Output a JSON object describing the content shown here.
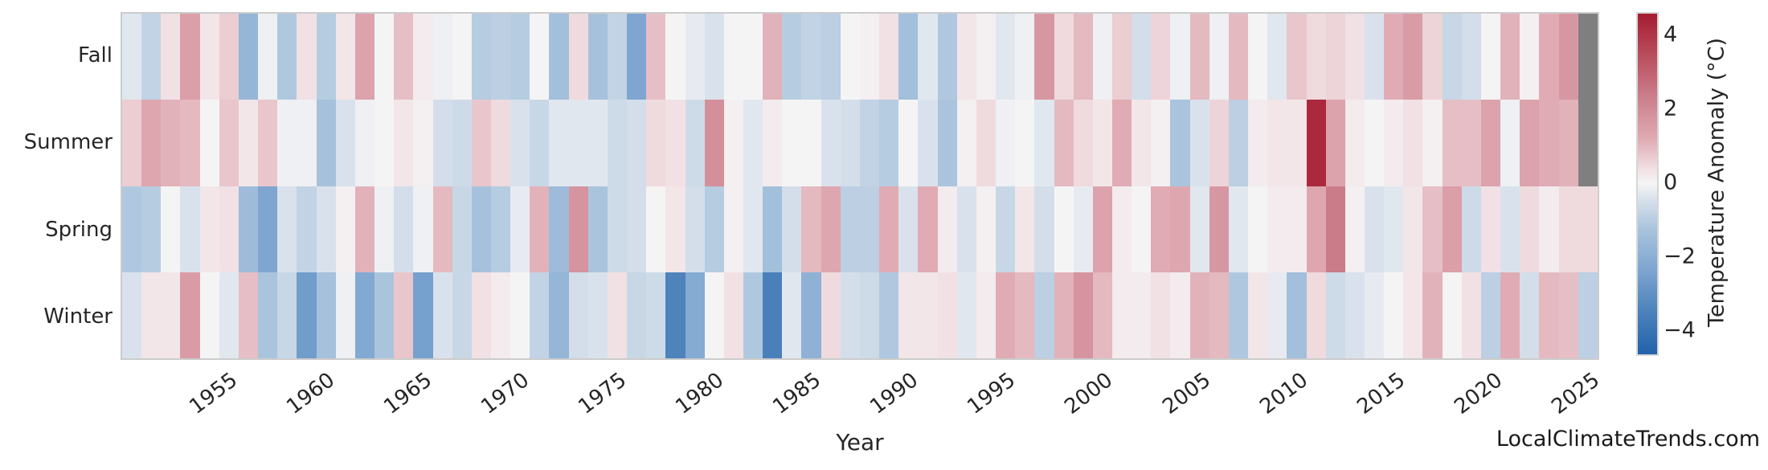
{
  "watermark": "LocalClimateTrends.com",
  "chart_data": {
    "type": "heatmap",
    "title": "",
    "xlabel": "Year",
    "ylabel": "",
    "grid": false,
    "legend_position": "right-colorbar",
    "rows": [
      "Fall",
      "Summer",
      "Spring",
      "Winter"
    ],
    "years": [
      1950,
      1951,
      1952,
      1953,
      1954,
      1955,
      1956,
      1957,
      1958,
      1959,
      1960,
      1961,
      1962,
      1963,
      1964,
      1965,
      1966,
      1967,
      1968,
      1969,
      1970,
      1971,
      1972,
      1973,
      1974,
      1975,
      1976,
      1977,
      1978,
      1979,
      1980,
      1981,
      1982,
      1983,
      1984,
      1985,
      1986,
      1987,
      1988,
      1989,
      1990,
      1991,
      1992,
      1993,
      1994,
      1995,
      1996,
      1997,
      1998,
      1999,
      2000,
      2001,
      2002,
      2003,
      2004,
      2005,
      2006,
      2007,
      2008,
      2009,
      2010,
      2011,
      2012,
      2013,
      2014,
      2015,
      2016,
      2017,
      2018,
      2019,
      2020,
      2021,
      2022,
      2023,
      2024,
      2025
    ],
    "series": [
      {
        "name": "Fall",
        "values": [
          -0.3,
          -0.8,
          0.4,
          1.5,
          0.3,
          0.7,
          -1.7,
          -0.1,
          -1.1,
          0.4,
          -1.0,
          0.3,
          1.4,
          0.0,
          0.9,
          0.2,
          -0.1,
          0.0,
          -1.0,
          -0.9,
          -1.0,
          0.0,
          -1.4,
          0.5,
          -1.3,
          -0.8,
          -2.3,
          0.9,
          0.0,
          -0.2,
          -0.4,
          0.0,
          0.0,
          1.1,
          -1.0,
          -0.8,
          -0.9,
          0.0,
          0.1,
          0.4,
          -1.4,
          -0.3,
          -1.1,
          0.3,
          0.1,
          -0.3,
          -0.1,
          1.7,
          0.5,
          1.0,
          -0.1,
          0.7,
          -0.5,
          0.6,
          -0.1,
          1.0,
          -0.1,
          1.0,
          0.0,
          -0.3,
          0.8,
          0.5,
          0.6,
          0.4,
          -0.4,
          1.2,
          1.6,
          0.6,
          -0.7,
          -0.5,
          0.0,
          1.1,
          0.1,
          1.2,
          1.7,
          null
        ]
      },
      {
        "name": "Summer",
        "values": [
          0.7,
          1.3,
          1.1,
          1.0,
          0.0,
          0.8,
          0.3,
          0.8,
          -0.1,
          -0.1,
          -1.3,
          -0.4,
          -0.1,
          0.0,
          0.3,
          0.1,
          -0.5,
          -0.6,
          0.8,
          0.5,
          -0.4,
          -0.7,
          -0.3,
          -0.3,
          -0.3,
          -0.6,
          -0.5,
          0.5,
          0.4,
          -0.6,
          1.9,
          0.1,
          -0.3,
          0.2,
          0.0,
          0.0,
          -0.4,
          -0.5,
          -0.8,
          -1.0,
          0.0,
          -0.4,
          -1.2,
          0.1,
          0.5,
          -0.1,
          0.0,
          -0.3,
          1.0,
          0.5,
          0.3,
          1.2,
          0.3,
          0.1,
          -1.2,
          -0.4,
          0.6,
          -0.9,
          0.2,
          0.3,
          0.3,
          4.3,
          1.4,
          0.2,
          0.0,
          0.2,
          0.4,
          0.1,
          0.9,
          0.9,
          1.4,
          -0.1,
          1.4,
          1.2,
          1.1,
          null
        ]
      },
      {
        "name": "Spring",
        "values": [
          -1.1,
          -1.0,
          0.0,
          -0.4,
          0.3,
          0.4,
          -1.5,
          -2.3,
          -0.4,
          -0.8,
          -0.4,
          0.1,
          1.1,
          -0.1,
          -0.5,
          -0.1,
          1.0,
          -0.7,
          -1.3,
          -1.0,
          -0.2,
          1.1,
          -1.5,
          1.8,
          -1.2,
          -0.6,
          -0.5,
          0.0,
          0.3,
          -0.5,
          -1.0,
          0.1,
          -0.3,
          -1.4,
          -0.5,
          1.0,
          1.3,
          -0.9,
          -0.9,
          1.2,
          -0.4,
          1.2,
          0.2,
          -0.4,
          0.1,
          -0.7,
          0.3,
          -0.5,
          0.0,
          -0.2,
          1.4,
          0.2,
          0.0,
          1.2,
          1.3,
          -0.3,
          1.7,
          -0.3,
          0.0,
          0.2,
          0.2,
          1.3,
          2.4,
          0.1,
          -0.4,
          -0.3,
          0.3,
          0.9,
          1.5,
          -0.6,
          0.4,
          -0.4,
          0.5,
          0.2,
          0.5,
          0.5
        ]
      },
      {
        "name": "Winter",
        "values": [
          -0.4,
          0.3,
          0.3,
          1.6,
          0.0,
          -0.3,
          0.9,
          -1.2,
          -0.7,
          -2.6,
          -1.3,
          -0.1,
          -2.2,
          -1.2,
          0.8,
          -2.5,
          -0.4,
          -0.7,
          0.4,
          0.2,
          0.0,
          -0.8,
          -1.7,
          -0.5,
          -0.4,
          0.4,
          -0.7,
          -0.6,
          -3.4,
          -2.1,
          0.0,
          0.4,
          -1.1,
          -3.5,
          -0.3,
          -1.9,
          0.5,
          -0.5,
          -0.6,
          -1.1,
          0.3,
          0.3,
          0.4,
          -0.3,
          0.2,
          1.2,
          1.0,
          -0.9,
          1.1,
          1.8,
          1.0,
          0.2,
          0.2,
          0.4,
          0.2,
          1.1,
          1.0,
          -1.1,
          0.3,
          -0.2,
          -1.4,
          0.5,
          -0.6,
          -0.4,
          -0.2,
          0.0,
          0.3,
          1.1,
          0.0,
          0.4,
          -0.9,
          1.2,
          -0.5,
          1.0,
          0.9,
          -0.9
        ]
      }
    ],
    "xticklabels": [
      "1955",
      "1960",
      "1965",
      "1970",
      "1975",
      "1980",
      "1985",
      "1990",
      "1995",
      "2000",
      "2005",
      "2010",
      "2015",
      "2020",
      "2025"
    ],
    "colorbar": {
      "label": "Temperature Anomaly (°C)",
      "vmin": -4.6,
      "vmax": 4.6,
      "ticks": [
        {
          "value": 4,
          "label": "4"
        },
        {
          "value": 2,
          "label": "2"
        },
        {
          "value": 0,
          "label": "0"
        },
        {
          "value": -2,
          "label": "−2"
        },
        {
          "value": -4,
          "label": "−4"
        }
      ]
    },
    "palette": {
      "name": "vlag-like diverging",
      "nan_color": "#7f7f7f",
      "stops": [
        [
          -4.6,
          "#2262aa"
        ],
        [
          -3.5,
          "#4a80ba"
        ],
        [
          -2.4,
          "#7aa3cf"
        ],
        [
          -1.2,
          "#aac4dd"
        ],
        [
          -0.4,
          "#d9e2ec"
        ],
        [
          0.0,
          "#f5f4f5"
        ],
        [
          0.4,
          "#f1e1e4"
        ],
        [
          1.2,
          "#e0abb4"
        ],
        [
          2.4,
          "#ca7c89"
        ],
        [
          3.5,
          "#b94c5c"
        ],
        [
          4.6,
          "#a51c30"
        ]
      ]
    }
  }
}
